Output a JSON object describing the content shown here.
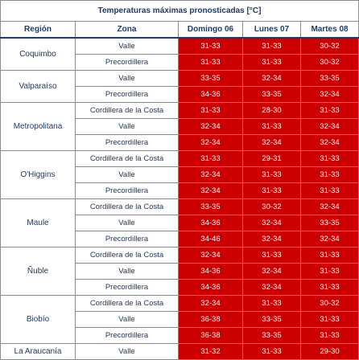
{
  "title": "Temperaturas máximas pronosticadas [°C]",
  "headers": [
    "Región",
    "Zona",
    "Domingo 06",
    "Lunes 07",
    "Martes 08"
  ],
  "colors": {
    "hot": "#cc0000",
    "text": "#1f3a6b",
    "grid": "#8a8a8a"
  },
  "regions": [
    {
      "name": "Coquimbo",
      "rows": [
        {
          "zona": "Valle",
          "values": [
            "31-33",
            "31-33",
            "30-32"
          ]
        },
        {
          "zona": "Precordillera",
          "values": [
            "31-33",
            "31-33",
            "30-32"
          ]
        }
      ]
    },
    {
      "name": "Valparaíso",
      "rows": [
        {
          "zona": "Valle",
          "values": [
            "33-35",
            "32-34",
            "33-35"
          ]
        },
        {
          "zona": "Precordillera",
          "values": [
            "34-36",
            "33-35",
            "32-34"
          ]
        }
      ]
    },
    {
      "name": "Metropolitana",
      "rows": [
        {
          "zona": "Cordillera de la Costa",
          "values": [
            "31-33",
            "28-30",
            "31-33"
          ]
        },
        {
          "zona": "Valle",
          "values": [
            "32-34",
            "31-33",
            "32-34"
          ]
        },
        {
          "zona": "Precordillera",
          "values": [
            "32-34",
            "32-34",
            "32-34"
          ]
        }
      ]
    },
    {
      "name": "O'Higgins",
      "rows": [
        {
          "zona": "Cordillera de la Costa",
          "values": [
            "31-33",
            "29-31",
            "31-33"
          ]
        },
        {
          "zona": "Valle",
          "values": [
            "32-34",
            "31-33",
            "31-33"
          ]
        },
        {
          "zona": "Precordillera",
          "values": [
            "32-34",
            "31-33",
            "31-33"
          ]
        }
      ]
    },
    {
      "name": "Maule",
      "rows": [
        {
          "zona": "Cordillera de la Costa",
          "values": [
            "33-35",
            "30-32",
            "32-34"
          ]
        },
        {
          "zona": "Valle",
          "values": [
            "34-36",
            "32-34",
            "33-35"
          ]
        },
        {
          "zona": "Precordillera",
          "values": [
            "34-46",
            "32-34",
            "32-34"
          ]
        }
      ]
    },
    {
      "name": "Ñuble",
      "rows": [
        {
          "zona": "Cordillera de la Costa",
          "values": [
            "32-34",
            "31-33",
            "31-33"
          ]
        },
        {
          "zona": "Valle",
          "values": [
            "34-36",
            "32-34",
            "31-33"
          ]
        },
        {
          "zona": "Precordillera",
          "values": [
            "34-36",
            "32-34",
            "31-33"
          ]
        }
      ]
    },
    {
      "name": "Biobío",
      "rows": [
        {
          "zona": "Cordillera de la Costa",
          "values": [
            "32-34",
            "31-33",
            "30-32"
          ]
        },
        {
          "zona": "Valle",
          "values": [
            "36-38",
            "33-35",
            "31-33"
          ]
        },
        {
          "zona": "Precordillera",
          "values": [
            "36-38",
            "33-35",
            "31-33"
          ]
        }
      ]
    },
    {
      "name": "La Araucanía",
      "rows": [
        {
          "zona": "Valle",
          "values": [
            "31-32",
            "31-33",
            "29-30"
          ]
        }
      ]
    }
  ]
}
